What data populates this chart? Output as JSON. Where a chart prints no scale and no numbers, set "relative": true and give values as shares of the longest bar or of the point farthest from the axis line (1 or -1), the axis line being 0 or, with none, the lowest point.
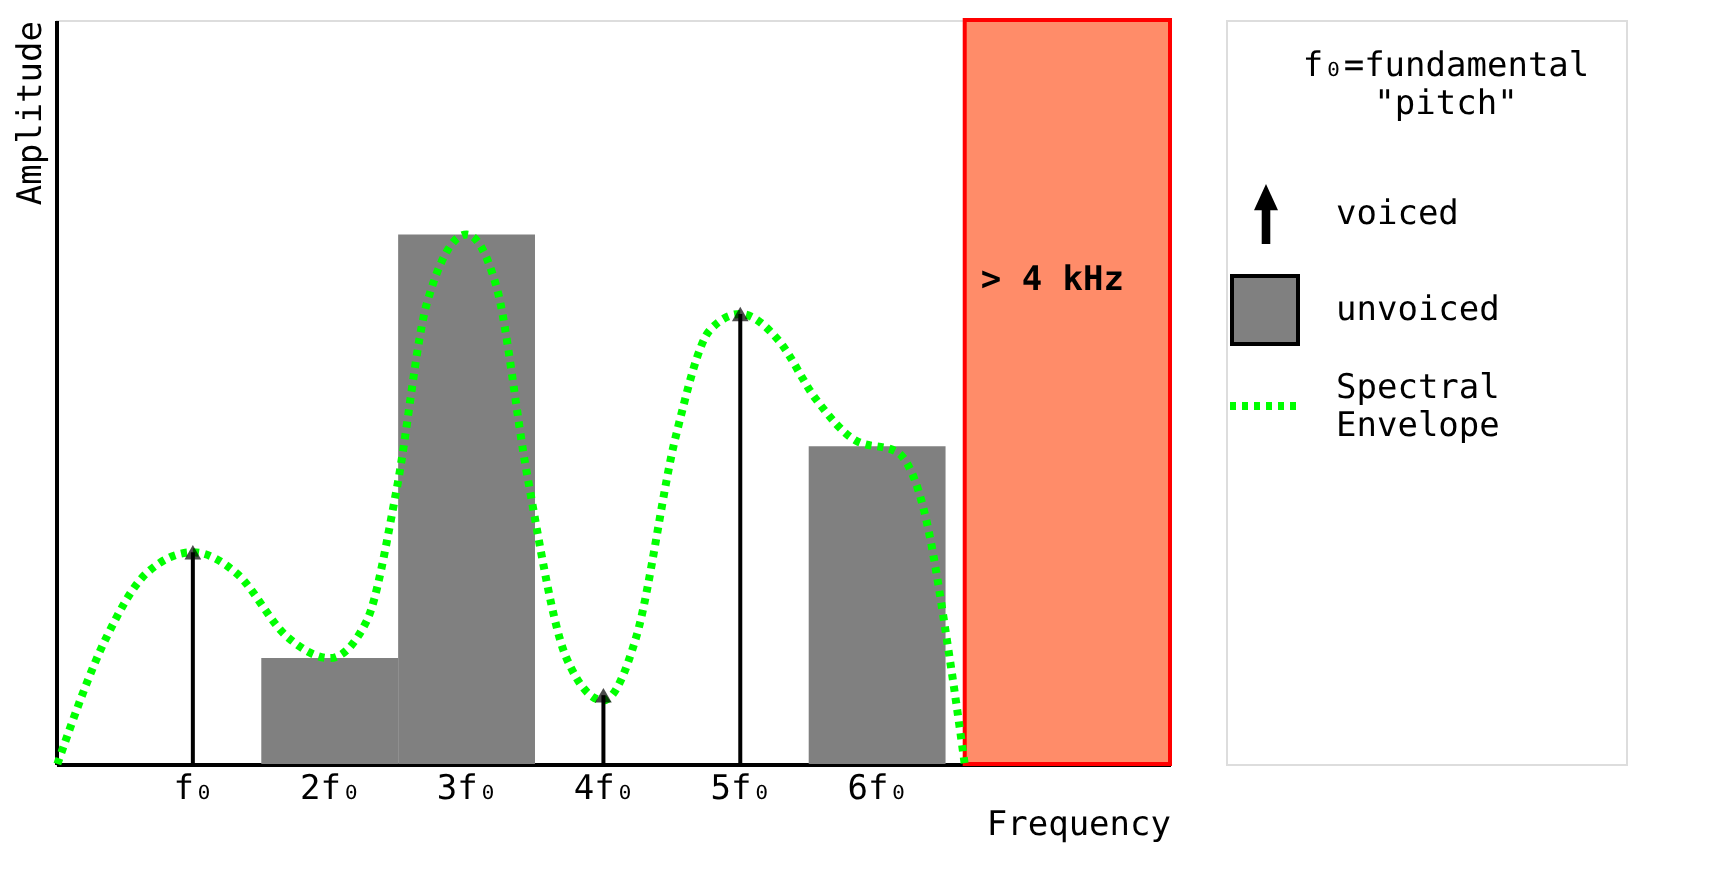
{
  "chart_data": {
    "type": "bar",
    "relative": true,
    "xlabel": "Frequency",
    "ylabel": "Amplitude",
    "legend_title": "f₀=fundamental \"pitch\"",
    "legend": "right",
    "xlim": [
      0,
      8.14
    ],
    "xticks": [
      {
        "value": 1,
        "label": "f₀"
      },
      {
        "value": 2,
        "label": "2f₀"
      },
      {
        "value": 3,
        "label": "3f₀"
      },
      {
        "value": 4,
        "label": "4f₀"
      },
      {
        "value": 5,
        "label": "5f₀"
      },
      {
        "value": 6,
        "label": "6f₀"
      }
    ],
    "series": [
      {
        "name": "voiced",
        "type": "lollipop",
        "marker": "triangle",
        "color": "#000000",
        "x": [
          1,
          4,
          5
        ],
        "values": [
          0.4,
          0.13,
          0.85
        ]
      },
      {
        "name": "unvoiced",
        "color": "#808080",
        "x": [
          2,
          3,
          6
        ],
        "values": [
          0.2,
          1.0,
          0.6
        ]
      },
      {
        "name": "Spectral Envelope",
        "type": "line",
        "line_style": "dotted",
        "color": "#00ff00",
        "x": [
          0.01,
          0.37,
          0.66,
          1,
          1.32,
          1.69,
          2,
          2.27,
          2.49,
          2.71,
          3,
          3.22,
          3.44,
          3.73,
          4,
          4.24,
          4.53,
          4.78,
          5,
          5.28,
          5.55,
          5.85,
          6.14,
          6.36,
          6.53,
          6.64
        ],
        "values": [
          0,
          0.24,
          0.36,
          0.4,
          0.36,
          0.24,
          0.2,
          0.27,
          0.52,
          0.87,
          1.0,
          0.9,
          0.55,
          0.2,
          0.12,
          0.24,
          0.62,
          0.82,
          0.85,
          0.8,
          0.69,
          0.61,
          0.59,
          0.46,
          0.2,
          0
        ]
      }
    ],
    "bands": [
      {
        "axis": "x",
        "from": 6.64,
        "to": 8.14,
        "label": "> 4 kHz",
        "color": "#ff8c69"
      }
    ]
  }
}
